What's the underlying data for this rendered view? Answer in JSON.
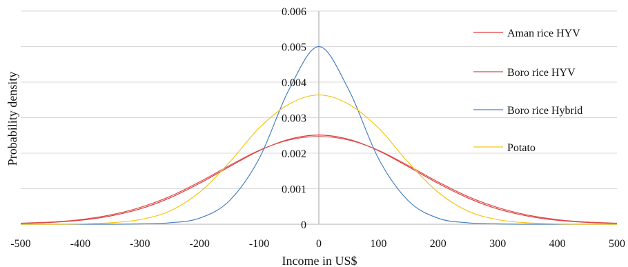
{
  "chart_data": {
    "type": "line",
    "title": "",
    "xlabel": "Income in US$",
    "ylabel": "Probability density",
    "xlim": [
      -500,
      500
    ],
    "ylim": [
      0,
      0.006
    ],
    "x_ticks": [
      "-500",
      "-400",
      "-300",
      "-200",
      "-100",
      "0",
      "100",
      "200",
      "300",
      "400",
      "500"
    ],
    "y_ticks": [
      "0",
      "0.001",
      "0.002",
      "0.003",
      "0.004",
      "0.005",
      "0.006"
    ],
    "grid": true,
    "legend_position": "right",
    "x": [
      -500,
      -450,
      -400,
      -350,
      -300,
      -250,
      -200,
      -150,
      -100,
      -50,
      0,
      50,
      100,
      150,
      200,
      250,
      300,
      350,
      400,
      450,
      500
    ],
    "series": [
      {
        "name": "Aman rice HYV",
        "color": "#e03c3c",
        "values": [
          2e-05,
          5e-05,
          0.00011,
          0.00023,
          0.00043,
          0.00074,
          0.00115,
          0.00162,
          0.00207,
          0.00239,
          0.00251,
          0.00239,
          0.00207,
          0.00162,
          0.00115,
          0.00074,
          0.00043,
          0.00023,
          0.00011,
          5e-05,
          2e-05
        ]
      },
      {
        "name": "Boro rice HYV",
        "color": "#d94c4c",
        "values": [
          3e-05,
          6e-05,
          0.00013,
          0.00026,
          0.00047,
          0.00078,
          0.00119,
          0.00165,
          0.00208,
          0.00237,
          0.00247,
          0.00237,
          0.00208,
          0.00165,
          0.00119,
          0.00078,
          0.00047,
          0.00026,
          0.00013,
          6e-05,
          3e-05
        ]
      },
      {
        "name": "Boro rice Hybrid",
        "color": "#4a7fbf",
        "values": [
          0,
          0,
          0,
          0,
          1e-05,
          4e-05,
          0.00017,
          0.00066,
          0.00185,
          0.00379,
          0.005,
          0.00379,
          0.00185,
          0.00066,
          0.00017,
          4e-05,
          1e-05,
          0,
          0,
          0,
          0
        ]
      },
      {
        "name": "Potato",
        "color": "#f5c518",
        "values": [
          0,
          0,
          1e-05,
          4e-05,
          0.00013,
          0.00037,
          0.0009,
          0.00174,
          0.00271,
          0.00338,
          0.00364,
          0.00338,
          0.00271,
          0.00174,
          0.0009,
          0.00037,
          0.00013,
          4e-05,
          1e-05,
          0,
          0
        ]
      }
    ]
  }
}
